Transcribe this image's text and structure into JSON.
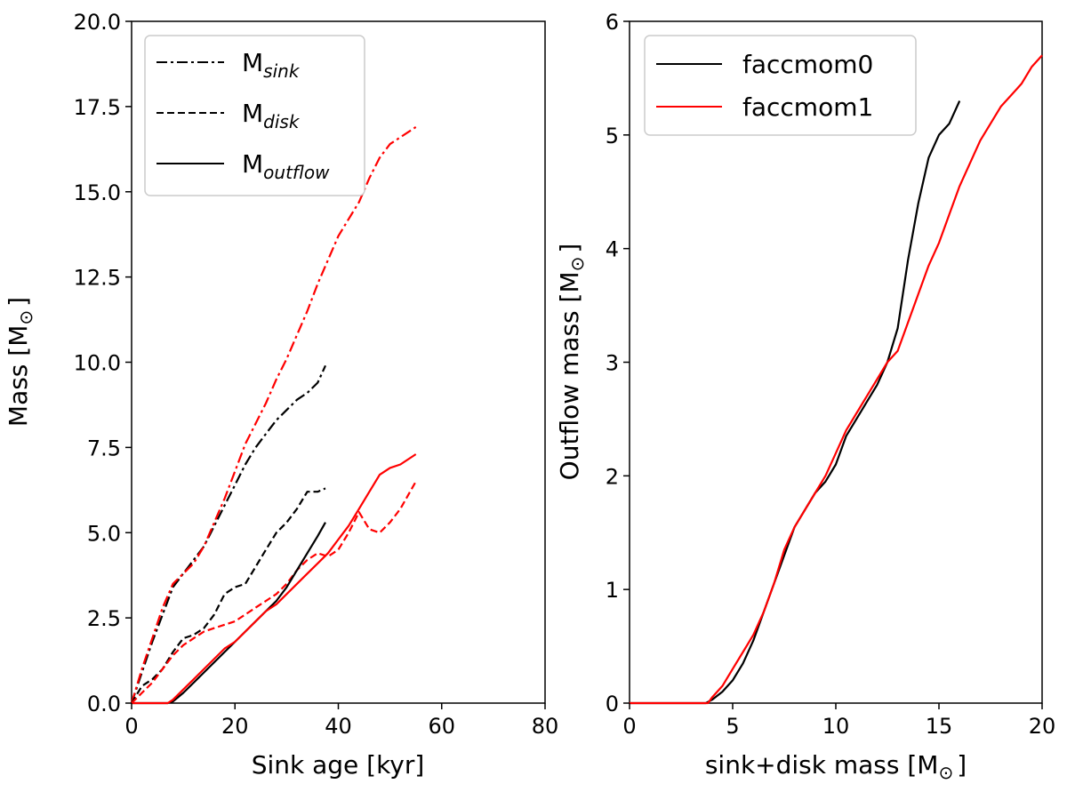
{
  "colors": {
    "black": "#000000",
    "red": "#ff0000"
  },
  "chart_data": [
    {
      "type": "line",
      "xlabel": "Sink age [kyr]",
      "ylabel_main": "Mass [M",
      "ylabel_sym": "⊙",
      "ylabel_end": "]",
      "xlim": [
        0,
        80
      ],
      "ylim": [
        0,
        20
      ],
      "xticks": [
        0,
        20,
        40,
        60,
        80
      ],
      "xtick_labels": [
        "0",
        "20",
        "40",
        "60",
        "80"
      ],
      "yticks": [
        0,
        2.5,
        5,
        7.5,
        10,
        12.5,
        15,
        17.5,
        20
      ],
      "ytick_labels": [
        "0.0",
        "2.5",
        "5.0",
        "7.5",
        "10.0",
        "12.5",
        "15.0",
        "17.5",
        "20.0"
      ],
      "legend_position": "top-left",
      "legend": [
        {
          "base": "M",
          "sub": "sink",
          "style": "dashdot"
        },
        {
          "base": "M",
          "sub": "disk",
          "style": "dashed"
        },
        {
          "base": "M",
          "sub": "outflow",
          "style": "solid"
        }
      ],
      "series": [
        {
          "name": "M_sink faccmom0",
          "color": "#000000",
          "style": "dashdot",
          "x": [
            0,
            2,
            4,
            6,
            8,
            10,
            12,
            14,
            16,
            18,
            20,
            22,
            24,
            26,
            28,
            30,
            32,
            34,
            36,
            37.5
          ],
          "y": [
            0,
            0.9,
            1.8,
            2.6,
            3.4,
            3.8,
            4.2,
            4.6,
            5.2,
            5.8,
            6.4,
            7.0,
            7.5,
            7.9,
            8.3,
            8.6,
            8.9,
            9.1,
            9.4,
            9.9
          ]
        },
        {
          "name": "M_sink faccmom1",
          "color": "#ff0000",
          "style": "dashdot",
          "x": [
            0,
            2,
            4,
            6,
            8,
            10,
            12,
            14,
            16,
            18,
            20,
            22,
            24,
            26,
            28,
            30,
            32,
            34,
            36,
            38,
            40,
            42,
            44,
            46,
            48,
            50,
            52,
            55
          ],
          "y": [
            0,
            1.0,
            1.9,
            2.8,
            3.5,
            3.8,
            4.1,
            4.6,
            5.3,
            6.0,
            6.8,
            7.6,
            8.2,
            8.8,
            9.5,
            10.1,
            10.8,
            11.5,
            12.3,
            13.0,
            13.7,
            14.2,
            14.7,
            15.4,
            16.0,
            16.4,
            16.6,
            16.9
          ]
        },
        {
          "name": "M_disk faccmom0",
          "color": "#000000",
          "style": "dashed",
          "x": [
            0,
            2,
            4,
            6,
            8,
            10,
            12,
            14,
            16,
            18,
            20,
            22,
            24,
            26,
            28,
            30,
            32,
            34,
            36,
            37.5
          ],
          "y": [
            0,
            0.5,
            0.7,
            1.0,
            1.5,
            1.9,
            2.0,
            2.2,
            2.6,
            3.2,
            3.4,
            3.5,
            4.0,
            4.5,
            5.0,
            5.3,
            5.7,
            6.2,
            6.2,
            6.3
          ]
        },
        {
          "name": "M_disk faccmom1",
          "color": "#ff0000",
          "style": "dashed",
          "x": [
            0,
            2,
            4,
            6,
            8,
            10,
            12,
            14,
            16,
            18,
            20,
            22,
            24,
            26,
            28,
            30,
            32,
            34,
            36,
            38,
            40,
            42,
            44,
            46,
            48,
            50,
            52,
            55
          ],
          "y": [
            0,
            0.3,
            0.6,
            1.0,
            1.4,
            1.7,
            1.9,
            2.1,
            2.2,
            2.3,
            2.4,
            2.6,
            2.8,
            3.0,
            3.2,
            3.5,
            3.9,
            4.2,
            4.4,
            4.3,
            4.5,
            5.0,
            5.6,
            5.1,
            5.0,
            5.3,
            5.7,
            6.5
          ]
        },
        {
          "name": "M_outflow faccmom0",
          "color": "#000000",
          "style": "solid",
          "x": [
            0,
            7,
            8,
            10,
            12,
            14,
            16,
            18,
            20,
            22,
            24,
            26,
            28,
            30,
            32,
            34,
            36,
            37.5
          ],
          "y": [
            0,
            0,
            0.05,
            0.3,
            0.6,
            0.9,
            1.2,
            1.5,
            1.8,
            2.1,
            2.4,
            2.7,
            3.0,
            3.4,
            3.9,
            4.4,
            4.9,
            5.3
          ]
        },
        {
          "name": "M_outflow faccmom1",
          "color": "#ff0000",
          "style": "solid",
          "x": [
            0,
            7,
            8,
            10,
            12,
            14,
            16,
            18,
            20,
            22,
            24,
            26,
            28,
            30,
            32,
            34,
            36,
            38,
            40,
            42,
            44,
            46,
            48,
            50,
            52,
            55
          ],
          "y": [
            0,
            0,
            0.1,
            0.4,
            0.7,
            1.0,
            1.3,
            1.6,
            1.8,
            2.1,
            2.4,
            2.7,
            2.9,
            3.2,
            3.5,
            3.8,
            4.1,
            4.4,
            4.8,
            5.2,
            5.7,
            6.2,
            6.7,
            6.9,
            7.0,
            7.3
          ]
        }
      ]
    },
    {
      "type": "line",
      "xlabel_main": "sink+disk mass [M",
      "xlabel_sym": "⊙",
      "xlabel_end": "]",
      "ylabel_main": "Outflow mass [M",
      "ylabel_sym": "⊙",
      "ylabel_end": "]",
      "xlim": [
        0,
        20
      ],
      "ylim": [
        0,
        6
      ],
      "xticks": [
        0,
        5,
        10,
        15,
        20
      ],
      "xtick_labels": [
        "0",
        "5",
        "10",
        "15",
        "20"
      ],
      "yticks": [
        0,
        1,
        2,
        3,
        4,
        5,
        6
      ],
      "ytick_labels": [
        "0",
        "1",
        "2",
        "3",
        "4",
        "5",
        "6"
      ],
      "legend_position": "top-left",
      "legend": [
        {
          "label": "faccmom0",
          "color": "#000000"
        },
        {
          "label": "faccmom1",
          "color": "#ff0000"
        }
      ],
      "series": [
        {
          "name": "faccmom0",
          "color": "#000000",
          "style": "solid",
          "x": [
            0,
            3.7,
            4.0,
            4.5,
            5.0,
            5.5,
            6.0,
            6.5,
            7.0,
            7.5,
            8.0,
            8.5,
            9.0,
            9.5,
            10.0,
            10.5,
            11.0,
            11.5,
            12.0,
            12.5,
            13.0,
            13.5,
            14.0,
            14.5,
            15.0,
            15.5,
            16.0
          ],
          "y": [
            0,
            0,
            0.03,
            0.1,
            0.2,
            0.35,
            0.55,
            0.8,
            1.05,
            1.3,
            1.55,
            1.7,
            1.85,
            1.95,
            2.1,
            2.35,
            2.5,
            2.65,
            2.8,
            3.0,
            3.3,
            3.9,
            4.4,
            4.8,
            5.0,
            5.1,
            5.3
          ]
        },
        {
          "name": "faccmom1",
          "color": "#ff0000",
          "style": "solid",
          "x": [
            0,
            3.8,
            4.0,
            4.5,
            5.0,
            5.5,
            6.0,
            6.5,
            7.0,
            7.5,
            8.0,
            8.5,
            9.0,
            9.5,
            10.0,
            10.5,
            11.0,
            11.5,
            12.0,
            12.5,
            13.0,
            13.5,
            14.0,
            14.5,
            15.0,
            15.5,
            16.0,
            16.5,
            17.0,
            17.5,
            18.0,
            18.5,
            19.0,
            19.5,
            20.0
          ],
          "y": [
            0,
            0,
            0.05,
            0.15,
            0.3,
            0.45,
            0.6,
            0.8,
            1.05,
            1.35,
            1.55,
            1.7,
            1.85,
            2.0,
            2.2,
            2.4,
            2.55,
            2.7,
            2.85,
            3.0,
            3.1,
            3.35,
            3.6,
            3.85,
            4.05,
            4.3,
            4.55,
            4.75,
            4.95,
            5.1,
            5.25,
            5.35,
            5.45,
            5.6,
            5.7
          ]
        }
      ]
    }
  ]
}
